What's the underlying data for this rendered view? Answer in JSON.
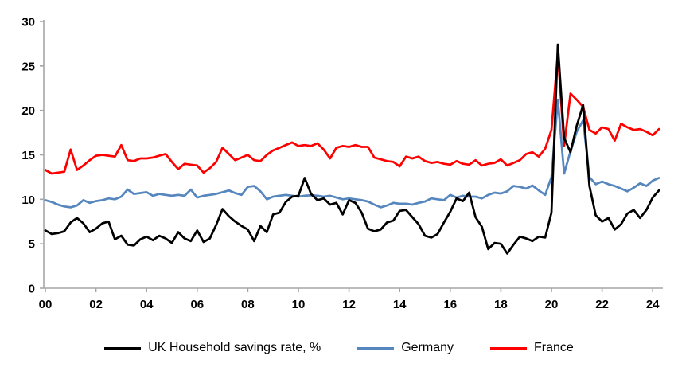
{
  "chart_data": {
    "type": "line",
    "title": "",
    "xlabel": "",
    "ylabel": "",
    "ylim": [
      0,
      30
    ],
    "y_ticks": [
      0,
      5,
      10,
      15,
      20,
      25,
      30
    ],
    "x_ticks": [
      {
        "year": 2000,
        "label": "00"
      },
      {
        "year": 2002,
        "label": "02"
      },
      {
        "year": 2004,
        "label": "04"
      },
      {
        "year": 2006,
        "label": "06"
      },
      {
        "year": 2008,
        "label": "08"
      },
      {
        "year": 2010,
        "label": "10"
      },
      {
        "year": 2012,
        "label": "12"
      },
      {
        "year": 2014,
        "label": "14"
      },
      {
        "year": 2016,
        "label": "16"
      },
      {
        "year": 2018,
        "label": "18"
      },
      {
        "year": 2020,
        "label": "20"
      },
      {
        "year": 2022,
        "label": "22"
      },
      {
        "year": 2024,
        "label": "24"
      }
    ],
    "x_start": 2000.0,
    "x_step": 0.25,
    "frequency": "quarterly",
    "quarters": "2000Q1 to 2024Q2",
    "grid": false,
    "legend_position": "bottom",
    "axis_color": "#a6a6a6",
    "series": [
      {
        "name": "UK Household savings rate, %",
        "color": "#000000",
        "values": [
          6.5,
          6.1,
          6.2,
          6.4,
          7.4,
          7.9,
          7.3,
          6.3,
          6.7,
          7.3,
          7.5,
          5.5,
          5.9,
          4.9,
          4.8,
          5.5,
          5.8,
          5.4,
          5.9,
          5.6,
          5.1,
          6.3,
          5.6,
          5.3,
          6.5,
          5.2,
          5.6,
          7.1,
          8.9,
          8.1,
          7.5,
          7.0,
          6.6,
          5.3,
          7.0,
          6.3,
          8.3,
          8.5,
          9.7,
          10.3,
          10.4,
          12.4,
          10.6,
          9.9,
          10.1,
          9.4,
          9.6,
          8.3,
          9.9,
          9.6,
          8.5,
          6.7,
          6.4,
          6.6,
          7.4,
          7.6,
          8.7,
          8.8,
          8.0,
          7.2,
          5.9,
          5.7,
          6.1,
          7.4,
          8.6,
          10.1,
          9.8,
          10.75,
          8.0,
          6.9,
          4.4,
          5.1,
          5.0,
          3.9,
          4.9,
          5.8,
          5.6,
          5.3,
          5.8,
          5.7,
          8.5,
          27.4,
          16.9,
          15.3,
          18.3,
          20.6,
          11.5,
          8.2,
          7.5,
          7.9,
          6.6,
          7.2,
          8.4,
          8.8,
          7.9,
          8.8,
          10.2,
          11.0
        ]
      },
      {
        "name": "Germany",
        "color": "#5586be",
        "values": [
          9.9,
          9.7,
          9.4,
          9.2,
          9.1,
          9.3,
          9.9,
          9.6,
          9.8,
          9.9,
          10.1,
          10.0,
          10.3,
          11.1,
          10.6,
          10.7,
          10.8,
          10.4,
          10.6,
          10.5,
          10.4,
          10.5,
          10.4,
          11.1,
          10.2,
          10.4,
          10.5,
          10.6,
          10.8,
          11.0,
          10.7,
          10.5,
          11.4,
          11.5,
          10.9,
          10.0,
          10.3,
          10.4,
          10.5,
          10.4,
          10.3,
          10.4,
          10.45,
          10.4,
          10.3,
          10.4,
          10.2,
          10.0,
          10.1,
          10.0,
          9.9,
          9.75,
          9.4,
          9.1,
          9.3,
          9.6,
          9.5,
          9.5,
          9.4,
          9.6,
          9.75,
          10.1,
          10.0,
          9.9,
          10.5,
          10.2,
          10.4,
          10.3,
          10.3,
          10.1,
          10.5,
          10.75,
          10.65,
          10.9,
          11.5,
          11.4,
          11.2,
          11.55,
          11.0,
          10.5,
          12.5,
          21.2,
          12.9,
          15.4,
          17.6,
          18.9,
          12.5,
          11.7,
          12.0,
          11.7,
          11.5,
          11.2,
          10.9,
          11.3,
          11.8,
          11.5,
          12.1,
          12.4
        ]
      },
      {
        "name": "France",
        "color": "#ff0000",
        "values": [
          13.3,
          12.9,
          13.0,
          13.1,
          15.6,
          13.3,
          13.8,
          14.4,
          14.9,
          15.0,
          14.9,
          14.8,
          16.1,
          14.4,
          14.3,
          14.6,
          14.6,
          14.7,
          14.9,
          15.1,
          14.2,
          13.4,
          14.0,
          13.9,
          13.8,
          13.0,
          13.5,
          14.2,
          15.8,
          15.1,
          14.4,
          14.7,
          15.0,
          14.4,
          14.3,
          15.0,
          15.5,
          15.8,
          16.1,
          16.4,
          16.0,
          16.1,
          16.0,
          16.3,
          15.6,
          14.6,
          15.8,
          16.0,
          15.9,
          16.1,
          15.9,
          15.9,
          14.7,
          14.5,
          14.3,
          14.2,
          13.7,
          14.8,
          14.6,
          14.8,
          14.3,
          14.1,
          14.2,
          14.0,
          13.9,
          14.3,
          14.0,
          13.9,
          14.4,
          13.8,
          14.0,
          14.1,
          14.5,
          13.8,
          14.1,
          14.4,
          15.1,
          15.3,
          14.8,
          15.7,
          17.8,
          26.4,
          16.0,
          21.9,
          21.2,
          20.4,
          17.8,
          17.4,
          18.1,
          17.9,
          16.6,
          18.5,
          18.1,
          17.8,
          17.9,
          17.6,
          17.2,
          17.9
        ]
      }
    ]
  },
  "legend": {
    "items": [
      {
        "label": "UK Household savings rate, %"
      },
      {
        "label": "Germany"
      },
      {
        "label": "France"
      }
    ]
  }
}
